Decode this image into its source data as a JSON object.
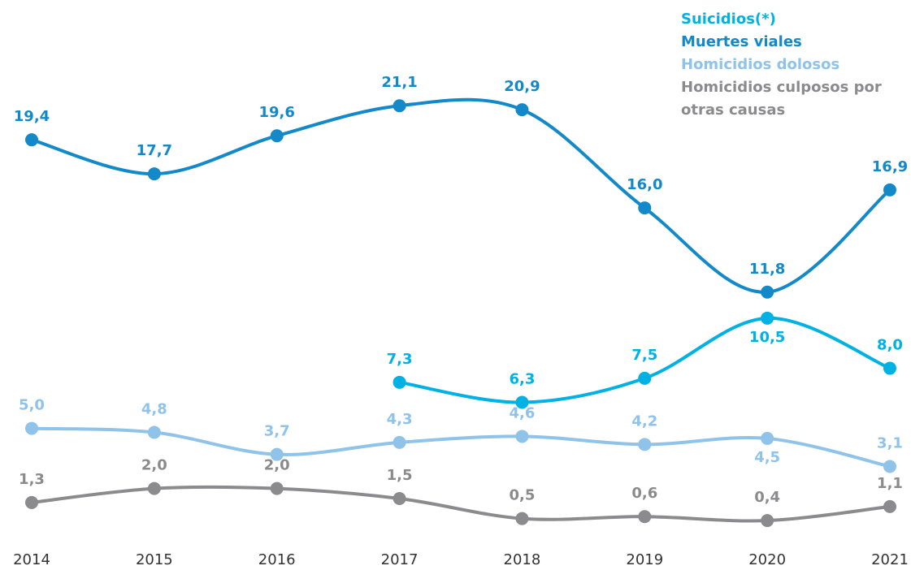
{
  "chart_data": {
    "type": "line",
    "x": [
      "2014",
      "2015",
      "2016",
      "2017",
      "2018",
      "2019",
      "2020",
      "2021"
    ],
    "ylim": [
      0,
      22
    ],
    "smooth": true,
    "series": [
      {
        "name": "Suicidios(*)",
        "color": "#00b2e3",
        "values": [
          null,
          null,
          null,
          7.3,
          6.3,
          7.5,
          10.5,
          8.0
        ],
        "value_labels": [
          null,
          null,
          null,
          "7,3",
          "6,3",
          "7,5",
          "10,5",
          "8,0"
        ]
      },
      {
        "name": "Muertes viales",
        "color": "#1389c9",
        "values": [
          19.4,
          17.7,
          19.6,
          21.1,
          20.9,
          16.0,
          11.8,
          16.9
        ],
        "value_labels": [
          "19,4",
          "17,7",
          "19,6",
          "21,1",
          "20,9",
          "16,0",
          "11,8",
          "16,9"
        ]
      },
      {
        "name": "Homicidios dolosos",
        "color": "#8fc3e9",
        "values": [
          5.0,
          4.8,
          3.7,
          4.3,
          4.6,
          4.2,
          4.5,
          3.1
        ],
        "value_labels": [
          "5,0",
          "4,8",
          "3,7",
          "4,3",
          "4,6",
          "4,2",
          "4,5",
          "3,1"
        ]
      },
      {
        "name": "Homicidios culposos por otras causas",
        "color": "#8b8b8d",
        "values": [
          1.3,
          2.0,
          2.0,
          1.5,
          0.5,
          0.6,
          0.4,
          1.1
        ],
        "value_labels": [
          "1,3",
          "2,0",
          "2,0",
          "1,5",
          "0,5",
          "0,6",
          "0,4",
          "1,1"
        ]
      }
    ]
  }
}
